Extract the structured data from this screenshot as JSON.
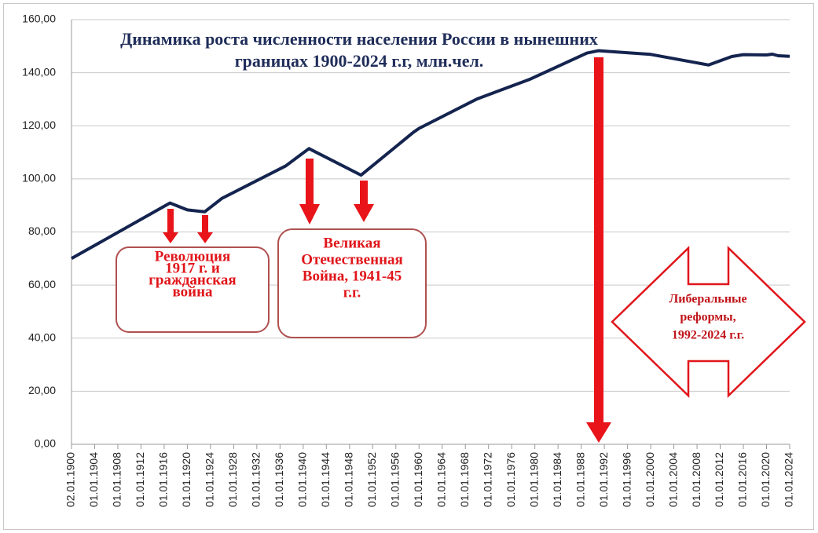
{
  "chart_data": {
    "type": "line",
    "title": [
      "Динамика  роста численности населения России  в нынешних",
      "границах  1900-2024 г.г, млн.чел."
    ],
    "annotations": [
      {
        "lines": [
          "Революция",
          "1917 г. и",
          "гражданская",
          "война"
        ]
      },
      {
        "lines": [
          "Великая",
          "Отечественная",
          "Война, 1941-45",
          "г.г."
        ]
      },
      {
        "lines": [
          "Либеральные",
          "реформы,",
          "1992-2024 г.г."
        ]
      }
    ],
    "x": [
      "02.01.1900",
      "01.01.1917",
      "01.01.1920",
      "01.01.1923",
      "01.01.1926",
      "01.01.1937",
      "01.01.1941",
      "01.01.1950",
      "01.01.1959",
      "01.01.1960",
      "01.01.1970",
      "01.01.1979",
      "01.01.1989",
      "01.01.1991",
      "01.01.2000",
      "01.01.2010",
      "01.01.2014",
      "01.01.2016",
      "01.01.2020",
      "01.01.2021",
      "01.01.2022",
      "01.01.2024"
    ],
    "values": [
      70.0,
      90.9,
      88.3,
      87.6,
      92.7,
      104.9,
      111.4,
      101.4,
      117.5,
      119.0,
      130.1,
      137.4,
      147.4,
      148.3,
      146.9,
      142.9,
      146.1,
      146.8,
      146.7,
      147.0,
      146.4,
      146.2
    ],
    "color": "#14244f",
    "xlim": [
      "02.01.1900",
      "01.01.2024"
    ],
    "xticks": [
      "02.01.1900",
      "01.01.1904",
      "01.01.1908",
      "01.01.1912",
      "01.01.1916",
      "01.01.1920",
      "01.01.1924",
      "01.01.1928",
      "01.01.1932",
      "01.01.1936",
      "01.01.1940",
      "01.01.1944",
      "01.01.1948",
      "01.01.1952",
      "01.01.1956",
      "01.01.1960",
      "01.01.1964",
      "01.01.1968",
      "01.01.1972",
      "01.01.1976",
      "01.01.1980",
      "01.01.1984",
      "01.01.1988",
      "01.01.1992",
      "01.01.1996",
      "01.01.2000",
      "01.01.2004",
      "01.01.2008",
      "01.01.2012",
      "01.01.2016",
      "01.01.2020",
      "01.01.2024"
    ],
    "ylim": [
      0,
      160
    ],
    "yticks": [
      {
        "value": 0,
        "label": "0,00"
      },
      {
        "value": 20,
        "label": "20,00"
      },
      {
        "value": 40,
        "label": "40,00"
      },
      {
        "value": 60,
        "label": "60,00"
      },
      {
        "value": 80,
        "label": "80,00"
      },
      {
        "value": 100,
        "label": "100,00"
      },
      {
        "value": 120,
        "label": "120,00"
      },
      {
        "value": 140,
        "label": "140,00"
      },
      {
        "value": 160,
        "label": "160,00"
      }
    ],
    "grid": true
  }
}
